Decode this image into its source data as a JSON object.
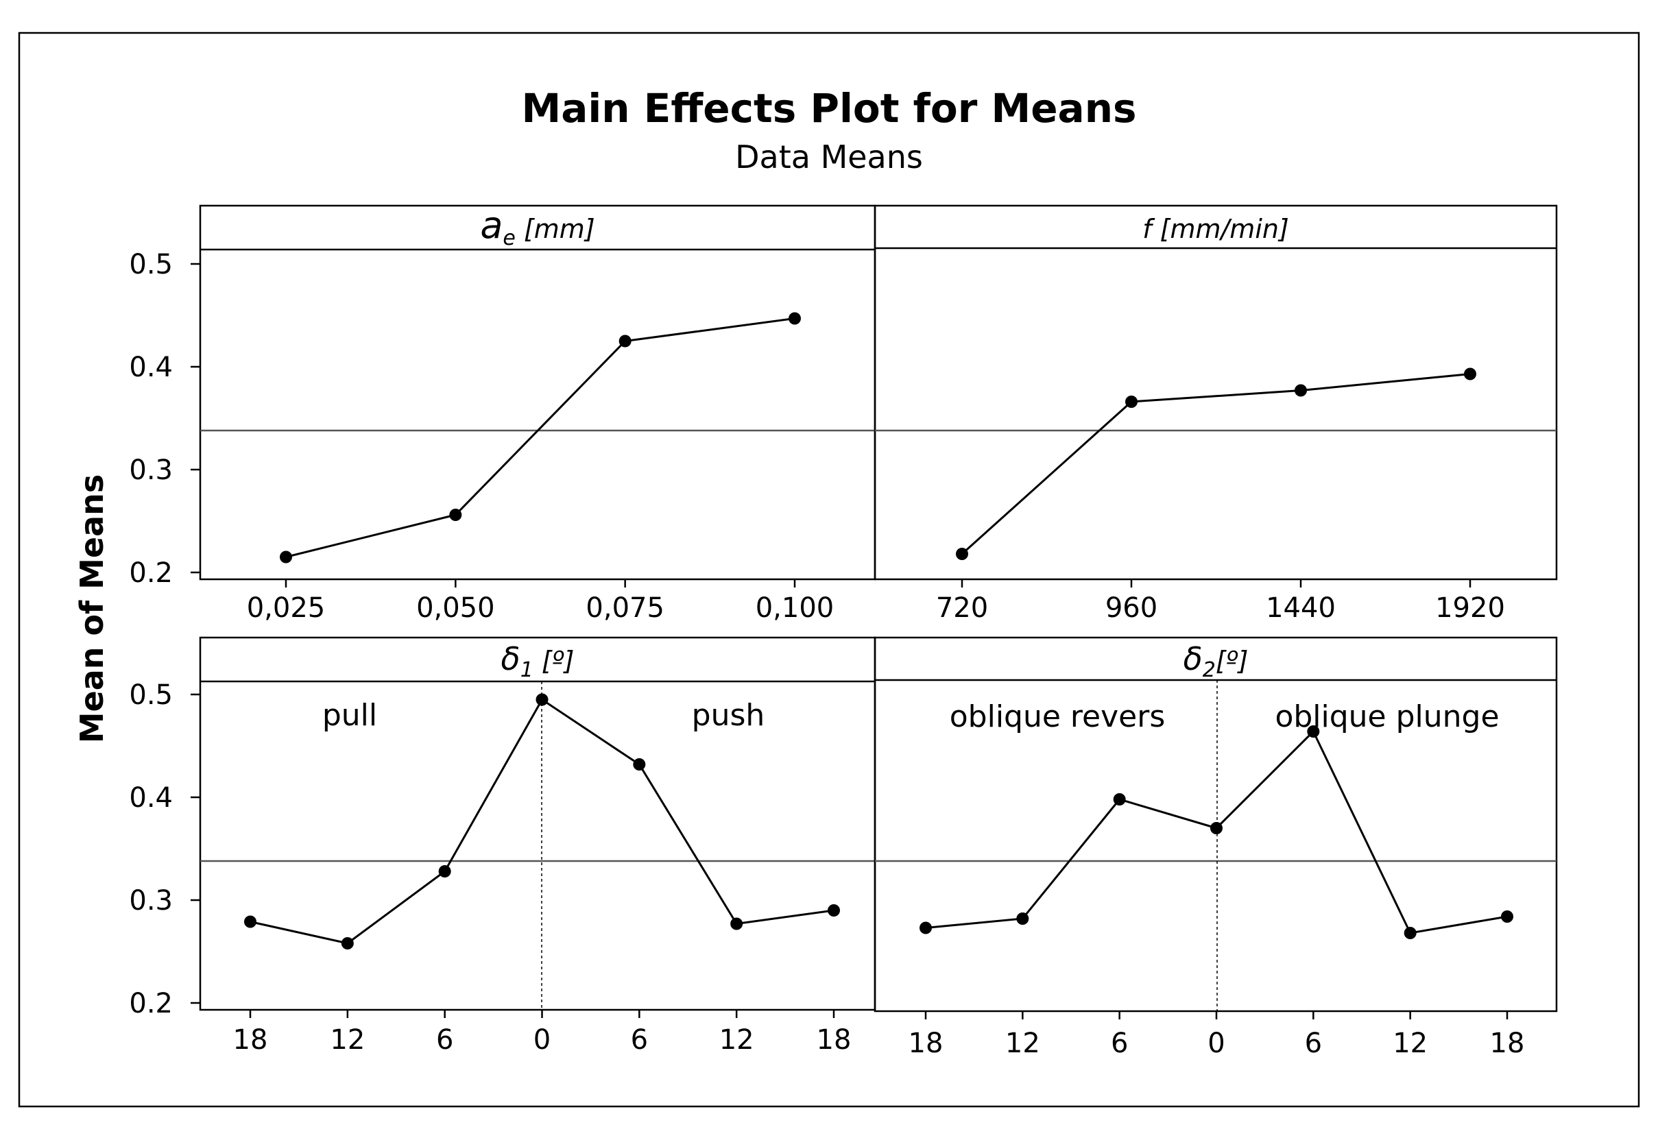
{
  "title": "Main Effects Plot for Means",
  "subtitle": "Data Means",
  "ylabel": "Mean of Means",
  "chart_data": [
    {
      "type": "line",
      "panel": "ae",
      "title": "ae [mm]",
      "strip_main": "a",
      "strip_sub": "e",
      "strip_unit": " [mm]",
      "categories": [
        "0,025",
        "0,050",
        "0,075",
        "0,100"
      ],
      "values": [
        0.215,
        0.256,
        0.425,
        0.447
      ],
      "grand_mean": 0.338,
      "ylim": [
        0.2,
        0.5
      ],
      "yticks": [
        0.2,
        0.3,
        0.4,
        0.5
      ],
      "ytick_labels": [
        "0.2",
        "0.3",
        "0.4",
        "0.5"
      ]
    },
    {
      "type": "line",
      "panel": "f",
      "title": "f [mm/min]",
      "categories": [
        "720",
        "960",
        "1440",
        "1920"
      ],
      "values": [
        0.218,
        0.366,
        0.377,
        0.393
      ],
      "grand_mean": 0.338,
      "ylim": [
        0.2,
        0.5
      ]
    },
    {
      "type": "line",
      "panel": "delta1",
      "title": "δ1 [º]",
      "strip_main": "δ",
      "strip_sub": "1",
      "strip_unit": " [º]",
      "categories": [
        "18",
        "12",
        "6",
        "0",
        "6",
        "12",
        "18"
      ],
      "values": [
        0.279,
        0.258,
        0.328,
        0.495,
        0.432,
        0.277,
        0.29
      ],
      "grand_mean": 0.338,
      "ylim": [
        0.2,
        0.5
      ],
      "yticks": [
        0.2,
        0.3,
        0.4,
        0.5
      ],
      "ytick_labels": [
        "0.2",
        "0.3",
        "0.4",
        "0.5"
      ],
      "region_labels": [
        "pull",
        "push"
      ]
    },
    {
      "type": "line",
      "panel": "delta2",
      "title": "δ2[º]",
      "strip_main": "δ",
      "strip_sub": "2",
      "strip_unit": "[º]",
      "categories": [
        "18",
        "12",
        "6",
        "0",
        "6",
        "12",
        "18"
      ],
      "values": [
        0.273,
        0.282,
        0.398,
        0.37,
        0.464,
        0.268,
        0.284
      ],
      "grand_mean": 0.338,
      "ylim": [
        0.2,
        0.5
      ],
      "region_labels": [
        "oblique revers",
        "oblique plunge"
      ]
    }
  ]
}
